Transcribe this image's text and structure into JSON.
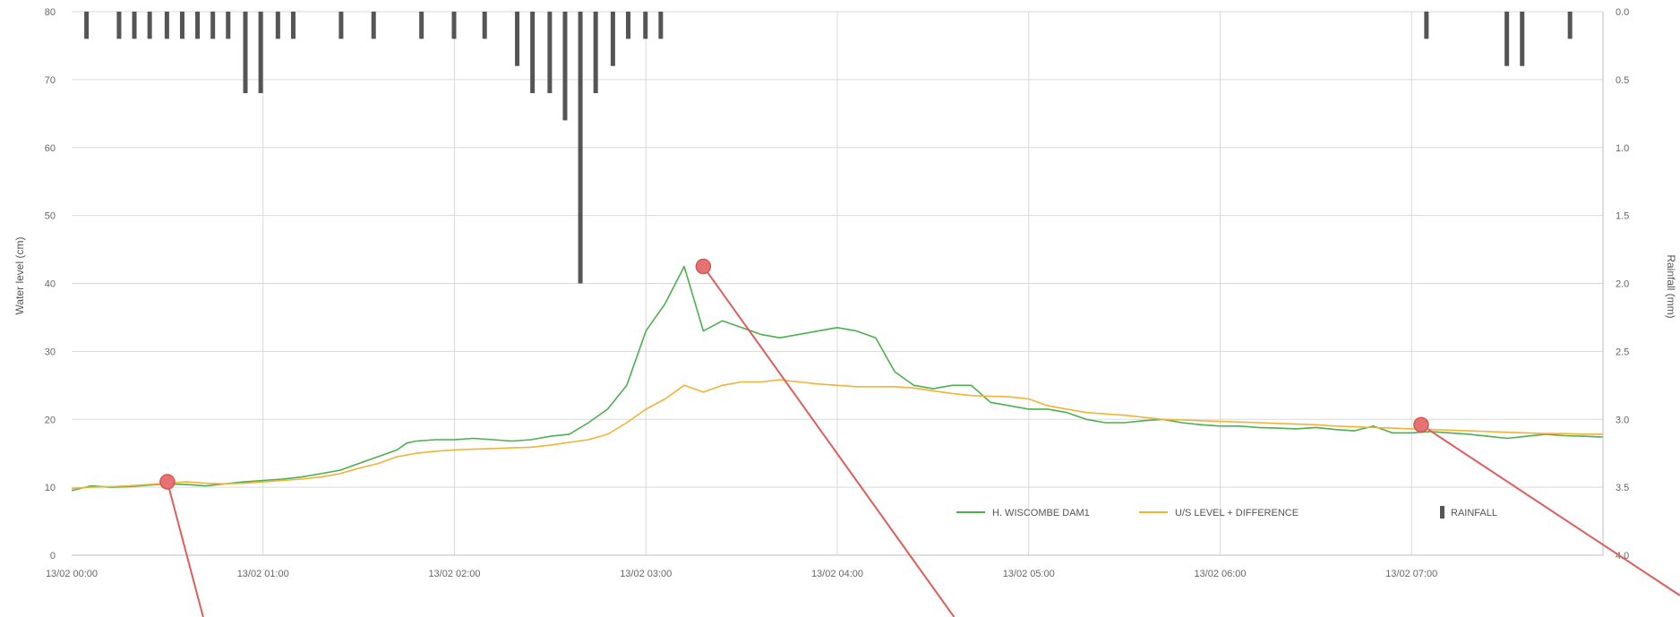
{
  "chart_data": {
    "type": "line",
    "ylabel": "Water level (cm)",
    "y2label": "Rainfall (mm)",
    "ylim": [
      0,
      80
    ],
    "y2lim": [
      0,
      4
    ],
    "y2_inverted": true,
    "y_ticks": [
      "0",
      "10",
      "20",
      "30",
      "40",
      "50",
      "60",
      "70",
      "80"
    ],
    "y2_ticks": [
      "4.0",
      "3.5",
      "3.0",
      "2.5",
      "2.0",
      "1.5",
      "1.0",
      "0.5",
      "0.0"
    ],
    "x_ticks": [
      "13/02 00:00",
      "13/02 01:00",
      "13/02 02:00",
      "13/02 03:00",
      "13/02 04:00",
      "13/02 05:00",
      "13/02 06:00",
      "13/02 07:00"
    ],
    "x_range_hours": [
      0,
      8
    ],
    "grid": true,
    "legend_position": "bottom-right",
    "series": [
      {
        "name": "H. WISCOMBE DAM1",
        "type": "line",
        "color": "#4caf50",
        "x": [
          0,
          0.1,
          0.2,
          0.3,
          0.4,
          0.5,
          0.6,
          0.7,
          0.8,
          0.9,
          1.0,
          1.1,
          1.2,
          1.3,
          1.4,
          1.5,
          1.6,
          1.7,
          1.75,
          1.8,
          1.9,
          2.0,
          2.1,
          2.2,
          2.3,
          2.4,
          2.5,
          2.6,
          2.7,
          2.8,
          2.9,
          3.0,
          3.05,
          3.1,
          3.2,
          3.3,
          3.4,
          3.45,
          3.5,
          3.6,
          3.7,
          3.8,
          3.9,
          4.0,
          4.1,
          4.2,
          4.3,
          4.4,
          4.5,
          4.6,
          4.7,
          4.8,
          4.9,
          5.0,
          5.1,
          5.2,
          5.3,
          5.4,
          5.5,
          5.6,
          5.7,
          5.8,
          5.9,
          6.0,
          6.1,
          6.2,
          6.3,
          6.4,
          6.5,
          6.6,
          6.7,
          6.8,
          6.9,
          7.0,
          7.1,
          7.2,
          7.3,
          7.4,
          7.5,
          7.6,
          7.7,
          7.8,
          7.9,
          8.0
        ],
        "values": [
          9.5,
          10.2,
          10,
          10.1,
          10.3,
          10.5,
          10.4,
          10.2,
          10.5,
          10.8,
          11,
          11.2,
          11.5,
          12,
          12.5,
          13.5,
          14.5,
          15.5,
          16.5,
          16.8,
          17,
          17,
          17.2,
          17,
          16.8,
          17,
          17.5,
          17.8,
          19.5,
          21.5,
          25,
          33,
          35,
          37,
          42.5,
          33,
          34.5,
          34,
          33.5,
          32.5,
          32,
          32.5,
          33,
          33.5,
          33,
          32,
          27,
          25,
          24.5,
          25,
          25,
          22.5,
          22,
          21.5,
          21.5,
          21,
          20,
          19.5,
          19.5,
          19.8,
          20,
          19.5,
          19.2,
          19,
          19,
          18.8,
          18.7,
          18.6,
          18.8,
          18.5,
          18.3,
          19,
          18,
          18,
          18.2,
          18,
          17.8,
          17.5,
          17.2,
          17.5,
          17.8,
          17.6,
          17.5,
          17.4
        ]
      },
      {
        "name": "U/S LEVEL + DIFFERENCE",
        "type": "line",
        "color": "#f2b233",
        "x": [
          0,
          0.1,
          0.2,
          0.3,
          0.4,
          0.5,
          0.6,
          0.7,
          0.8,
          0.9,
          1.0,
          1.1,
          1.2,
          1.3,
          1.4,
          1.5,
          1.6,
          1.7,
          1.8,
          1.9,
          2.0,
          2.1,
          2.2,
          2.3,
          2.4,
          2.5,
          2.6,
          2.7,
          2.8,
          2.9,
          3.0,
          3.1,
          3.2,
          3.3,
          3.4,
          3.5,
          3.6,
          3.7,
          3.8,
          3.9,
          4.0,
          4.1,
          4.2,
          4.3,
          4.4,
          4.5,
          4.6,
          4.7,
          4.8,
          4.9,
          5.0,
          5.1,
          5.2,
          5.3,
          5.4,
          5.5,
          5.6,
          5.7,
          5.8,
          5.9,
          6.0,
          6.1,
          6.2,
          6.3,
          6.4,
          6.5,
          6.6,
          6.7,
          6.8,
          6.9,
          7.0,
          7.1,
          7.2,
          7.3,
          7.4,
          7.5,
          7.6,
          7.7,
          7.8,
          7.9,
          8.0
        ],
        "values": [
          9.8,
          10,
          10.1,
          10.2,
          10.4,
          10.6,
          10.8,
          10.6,
          10.5,
          10.6,
          10.8,
          11,
          11.2,
          11.5,
          12,
          12.8,
          13.5,
          14.5,
          15,
          15.3,
          15.5,
          15.6,
          15.7,
          15.8,
          15.9,
          16.2,
          16.6,
          17,
          17.8,
          19.5,
          21.5,
          23,
          25,
          24,
          25,
          25.5,
          25.5,
          25.8,
          25.5,
          25.2,
          25,
          24.8,
          24.8,
          24.8,
          24.6,
          24.2,
          23.8,
          23.5,
          23.4,
          23.3,
          23,
          22,
          21.5,
          21,
          20.8,
          20.6,
          20.3,
          20,
          19.9,
          19.8,
          19.7,
          19.6,
          19.5,
          19.4,
          19.3,
          19.2,
          19,
          18.9,
          18.8,
          18.7,
          18.6,
          18.5,
          18.4,
          18.3,
          18.2,
          18.1,
          18,
          17.9,
          17.9,
          17.8,
          17.8
        ]
      },
      {
        "name": "RAINFALL",
        "type": "bar",
        "axis": "secondary",
        "color": "#555555",
        "x": [
          0.08,
          0.25,
          0.33,
          0.41,
          0.5,
          0.58,
          0.66,
          0.74,
          0.82,
          0.91,
          0.99,
          1.08,
          1.16,
          1.41,
          1.58,
          1.83,
          2.0,
          2.16,
          2.33,
          2.41,
          2.5,
          2.58,
          2.66,
          2.74,
          2.83,
          2.91,
          3.0,
          3.08,
          7.08,
          7.5,
          7.58,
          7.83
        ],
        "values": [
          0.2,
          0.2,
          0.2,
          0.2,
          0.2,
          0.2,
          0.2,
          0.2,
          0.2,
          0.6,
          0.6,
          0.2,
          0.2,
          0.2,
          0.2,
          0.2,
          0.2,
          0.2,
          0.4,
          0.6,
          0.6,
          0.8,
          2.0,
          0.6,
          0.4,
          0.2,
          0.2,
          0.2,
          0.2,
          0.4,
          0.4,
          0.2
        ]
      }
    ],
    "annotation_markers": [
      {
        "x": 0.5,
        "y": 10.8,
        "color": "#e57373"
      },
      {
        "x": 3.3,
        "y": 42.5,
        "color": "#e57373"
      },
      {
        "x": 7.05,
        "y": 19.2,
        "color": "#e57373"
      }
    ]
  }
}
